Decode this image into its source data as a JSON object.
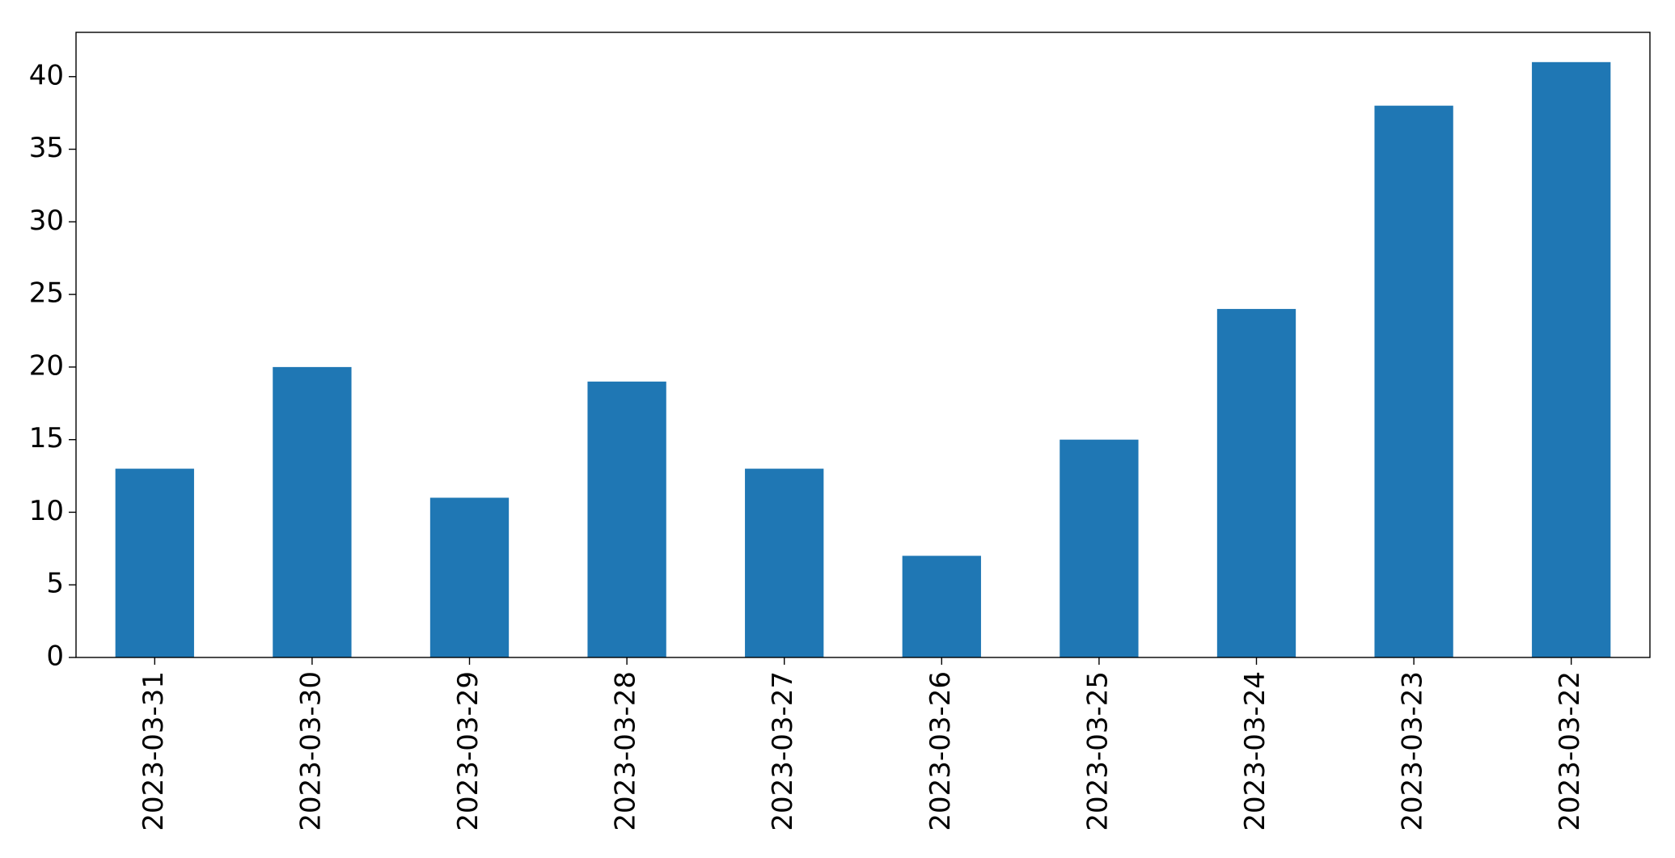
{
  "chart_data": {
    "type": "bar",
    "categories": [
      "2023-03-31",
      "2023-03-30",
      "2023-03-29",
      "2023-03-28",
      "2023-03-27",
      "2023-03-26",
      "2023-03-25",
      "2023-03-24",
      "2023-03-23",
      "2023-03-22"
    ],
    "values": [
      13,
      20,
      11,
      19,
      13,
      7,
      15,
      24,
      38,
      41
    ],
    "ylim": [
      0,
      43.05
    ],
    "yticks": [
      0,
      5,
      10,
      15,
      20,
      25,
      30,
      35,
      40
    ],
    "bar_color": "#1f77b4",
    "grid": false,
    "legend": "none",
    "xtick_rotation": "vertical"
  }
}
